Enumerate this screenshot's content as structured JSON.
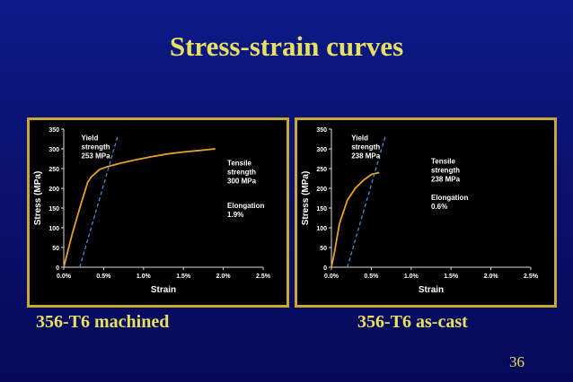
{
  "slide": {
    "title": "Stress-strain curves",
    "page_number": "36",
    "colors": {
      "title": "#e8e060",
      "curve": "#e6a030",
      "dashed": "#3a8fd8",
      "frame": "#c8a830",
      "background": "#0a1370"
    }
  },
  "chart_data": [
    {
      "type": "line",
      "caption": "356-T6 machined",
      "xlabel": "Strain",
      "ylabel": "Stress (MPa)",
      "xlim": [
        0,
        2.5
      ],
      "ylim": [
        0,
        350
      ],
      "x_ticks": [
        "0.0%",
        "0.5%",
        "1.0%",
        "1.5%",
        "2.0%",
        "2.5%"
      ],
      "y_ticks": [
        "0",
        "50",
        "100",
        "150",
        "200",
        "250",
        "300",
        "350"
      ],
      "x_tick_values": [
        0,
        0.5,
        1.0,
        1.5,
        2.0,
        2.5
      ],
      "y_tick_values": [
        0,
        50,
        100,
        150,
        200,
        250,
        300,
        350
      ],
      "series": [
        {
          "style": "solid",
          "x": [
            0,
            0.1,
            0.2,
            0.3,
            0.35,
            0.45,
            0.55,
            0.7,
            0.9,
            1.1,
            1.3,
            1.5,
            1.7,
            1.9
          ],
          "y": [
            0,
            80,
            150,
            215,
            230,
            248,
            255,
            263,
            272,
            280,
            287,
            292,
            296,
            300
          ]
        },
        {
          "style": "dashed",
          "x": [
            0.2,
            0.68
          ],
          "y": [
            0,
            335
          ]
        }
      ],
      "annotations": [
        {
          "lines": [
            "Yield",
            "strength",
            "253 MPa"
          ],
          "x": 0.22,
          "y": 322
        },
        {
          "lines": [
            "Tensile",
            "strength",
            "300 MPa"
          ],
          "x": 2.05,
          "y": 258
        },
        {
          "lines": [
            "Elongation",
            "1.9%"
          ],
          "x": 2.05,
          "y": 150
        }
      ]
    },
    {
      "type": "line",
      "caption": "356-T6 as-cast",
      "xlabel": "Strain",
      "ylabel": "Stress (MPa)",
      "xlim": [
        0,
        2.5
      ],
      "ylim": [
        0,
        350
      ],
      "x_ticks": [
        "0.0%",
        "0.5%",
        "1.0%",
        "1.5%",
        "2.0%",
        "2.5%"
      ],
      "y_ticks": [
        "0",
        "50",
        "100",
        "150",
        "200",
        "250",
        "300",
        "350"
      ],
      "x_tick_values": [
        0,
        0.5,
        1.0,
        1.5,
        2.0,
        2.5
      ],
      "y_tick_values": [
        0,
        50,
        100,
        150,
        200,
        250,
        300,
        350
      ],
      "series": [
        {
          "style": "solid",
          "x": [
            0,
            0.04,
            0.1,
            0.2,
            0.3,
            0.4,
            0.5,
            0.6
          ],
          "y": [
            0,
            40,
            110,
            170,
            200,
            220,
            235,
            240
          ]
        },
        {
          "style": "dashed",
          "x": [
            0.2,
            0.68
          ],
          "y": [
            0,
            335
          ]
        }
      ],
      "annotations": [
        {
          "lines": [
            "Yield",
            "strength",
            "238 MPa"
          ],
          "x": 0.25,
          "y": 322
        },
        {
          "lines": [
            "Tensile",
            "strength",
            "238 MPa"
          ],
          "x": 1.25,
          "y": 262
        },
        {
          "lines": [
            "Elongation",
            "0.6%"
          ],
          "x": 1.25,
          "y": 170
        }
      ]
    }
  ]
}
